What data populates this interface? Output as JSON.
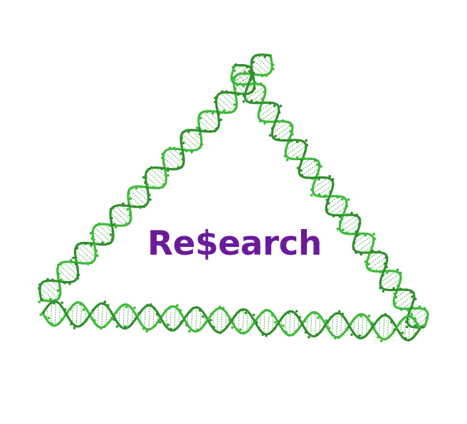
{
  "logo": {
    "text": "Re$earch",
    "text_color": "#6a1b9a",
    "graphic": "dna-double-helix-triangle",
    "helix_color": "#3fb93a",
    "helix_color_dark": "#2e8f2b"
  }
}
